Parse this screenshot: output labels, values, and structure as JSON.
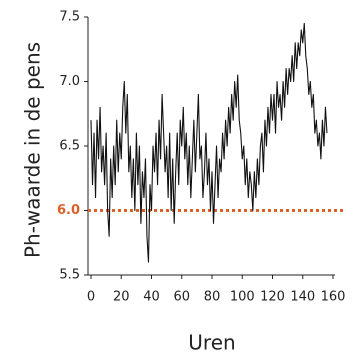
{
  "chart_data": {
    "type": "line",
    "x_label": "Uren",
    "y_label": "Ph-waarde in de pens",
    "x": [
      0,
      1,
      2,
      3,
      4,
      5,
      6,
      7,
      8,
      9,
      10,
      11,
      12,
      13,
      14,
      15,
      16,
      17,
      18,
      19,
      20,
      21,
      22,
      23,
      24,
      25,
      26,
      27,
      28,
      29,
      30,
      31,
      32,
      33,
      34,
      35,
      36,
      37,
      38,
      39,
      40,
      41,
      42,
      43,
      44,
      45,
      46,
      47,
      48,
      49,
      50,
      51,
      52,
      53,
      54,
      55,
      56,
      57,
      58,
      59,
      60,
      61,
      62,
      63,
      64,
      65,
      66,
      67,
      68,
      69,
      70,
      71,
      72,
      73,
      74,
      75,
      76,
      77,
      78,
      79,
      80,
      81,
      82,
      83,
      84,
      85,
      86,
      87,
      88,
      89,
      90,
      91,
      92,
      93,
      94,
      95,
      96,
      97,
      98,
      99,
      100,
      101,
      102,
      103,
      104,
      105,
      106,
      107,
      108,
      109,
      110,
      111,
      112,
      113,
      114,
      115,
      116,
      117,
      118,
      119,
      120,
      121,
      122,
      123,
      124,
      125,
      126,
      127,
      128,
      129,
      130,
      131,
      132,
      133,
      134,
      135,
      136,
      137,
      138,
      139,
      140,
      141,
      142,
      143,
      144,
      145,
      146,
      147,
      148,
      149,
      150,
      151,
      152,
      153,
      154,
      155,
      156
    ],
    "values": [
      6.7,
      6.2,
      6.6,
      6.1,
      6.7,
      6.4,
      6.8,
      6.3,
      6.5,
      6.2,
      6.6,
      6.0,
      5.8,
      6.4,
      6.1,
      6.5,
      6.2,
      6.7,
      6.3,
      6.6,
      6.4,
      6.8,
      7.0,
      6.6,
      6.9,
      6.3,
      6.5,
      6.1,
      6.4,
      6.0,
      6.6,
      6.2,
      6.5,
      5.9,
      6.3,
      6.1,
      6.4,
      5.8,
      5.6,
      6.2,
      6.0,
      6.5,
      6.3,
      6.6,
      6.2,
      6.7,
      6.4,
      6.9,
      6.6,
      6.3,
      6.5,
      6.1,
      6.6,
      6.0,
      6.4,
      5.9,
      6.3,
      6.6,
      6.2,
      6.7,
      6.5,
      6.8,
      6.4,
      6.6,
      6.2,
      6.5,
      6.1,
      6.4,
      6.7,
      6.3,
      6.6,
      6.9,
      6.4,
      6.5,
      6.1,
      6.3,
      6.6,
      6.2,
      6.4,
      6.0,
      6.3,
      5.9,
      6.2,
      6.5,
      6.1,
      6.4,
      6.3,
      6.6,
      6.4,
      6.7,
      6.5,
      6.8,
      6.6,
      6.9,
      6.7,
      7.0,
      6.8,
      7.05,
      6.7,
      6.6,
      6.4,
      6.5,
      6.2,
      6.4,
      6.1,
      6.3,
      6.2,
      6.0,
      6.3,
      6.1,
      6.4,
      6.2,
      6.5,
      6.6,
      6.3,
      6.7,
      6.5,
      6.8,
      6.6,
      6.9,
      6.7,
      6.9,
      6.6,
      7.0,
      6.8,
      6.9,
      6.7,
      7.0,
      6.8,
      7.1,
      6.9,
      7.1,
      7.0,
      7.2,
      7.0,
      7.3,
      7.1,
      7.3,
      7.2,
      7.4,
      7.3,
      7.45,
      7.2,
      7.1,
      6.9,
      7.0,
      6.8,
      6.9,
      6.6,
      6.7,
      6.5,
      6.6,
      6.4,
      6.7,
      6.5,
      6.8,
      6.6
    ],
    "color": "#111111",
    "xlim": [
      0,
      160
    ],
    "xticks": [
      0,
      20,
      40,
      60,
      80,
      100,
      120,
      140,
      160
    ],
    "ylim": [
      5.5,
      7.5
    ],
    "yticks": [
      5.5,
      {
        "value": 6,
        "label": "6.0"
      },
      6.5,
      {
        "value": 7,
        "label": "7.0"
      },
      7.5
    ],
    "reference_line": {
      "value": 6,
      "color": "#d9622b"
    },
    "grid": false
  }
}
